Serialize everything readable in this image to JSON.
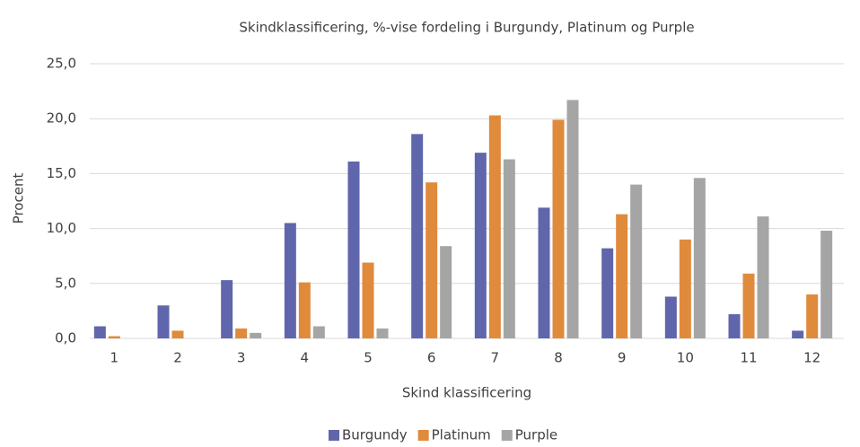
{
  "chart_data": {
    "type": "bar",
    "title": "Skindklassificering, %-vise fordeling i Burgundy, Platinum og Purple",
    "x_label": "Skind klassificering",
    "y_label": "Procent",
    "categories": [
      "1",
      "2",
      "3",
      "4",
      "5",
      "6",
      "7",
      "8",
      "9",
      "10",
      "11",
      "12"
    ],
    "series": [
      {
        "name": "Burgundy",
        "color": "#5f66ab",
        "values": [
          1.1,
          3.0,
          5.3,
          10.5,
          16.1,
          18.6,
          16.9,
          11.9,
          8.2,
          3.8,
          2.2,
          0.7
        ]
      },
      {
        "name": "Platinum",
        "color": "#e08a3c",
        "values": [
          0.2,
          0.7,
          0.9,
          5.1,
          6.9,
          14.2,
          20.3,
          19.9,
          11.3,
          9.0,
          5.9,
          4.0
        ]
      },
      {
        "name": "Purple",
        "color": "#a5a5a5",
        "values": [
          0.0,
          0.0,
          0.5,
          1.1,
          0.9,
          8.4,
          16.3,
          21.7,
          14.0,
          14.6,
          11.1,
          9.8
        ]
      }
    ],
    "ylim": [
      0,
      25
    ],
    "yticks": [
      {
        "value": 0,
        "label": "0,0"
      },
      {
        "value": 5,
        "label": "5,0"
      },
      {
        "value": 10,
        "label": "10,0"
      },
      {
        "value": 15,
        "label": "15,0"
      },
      {
        "value": 20,
        "label": "20,0"
      },
      {
        "value": 25,
        "label": "25,0"
      }
    ],
    "grid": true,
    "legend": "bottom"
  }
}
